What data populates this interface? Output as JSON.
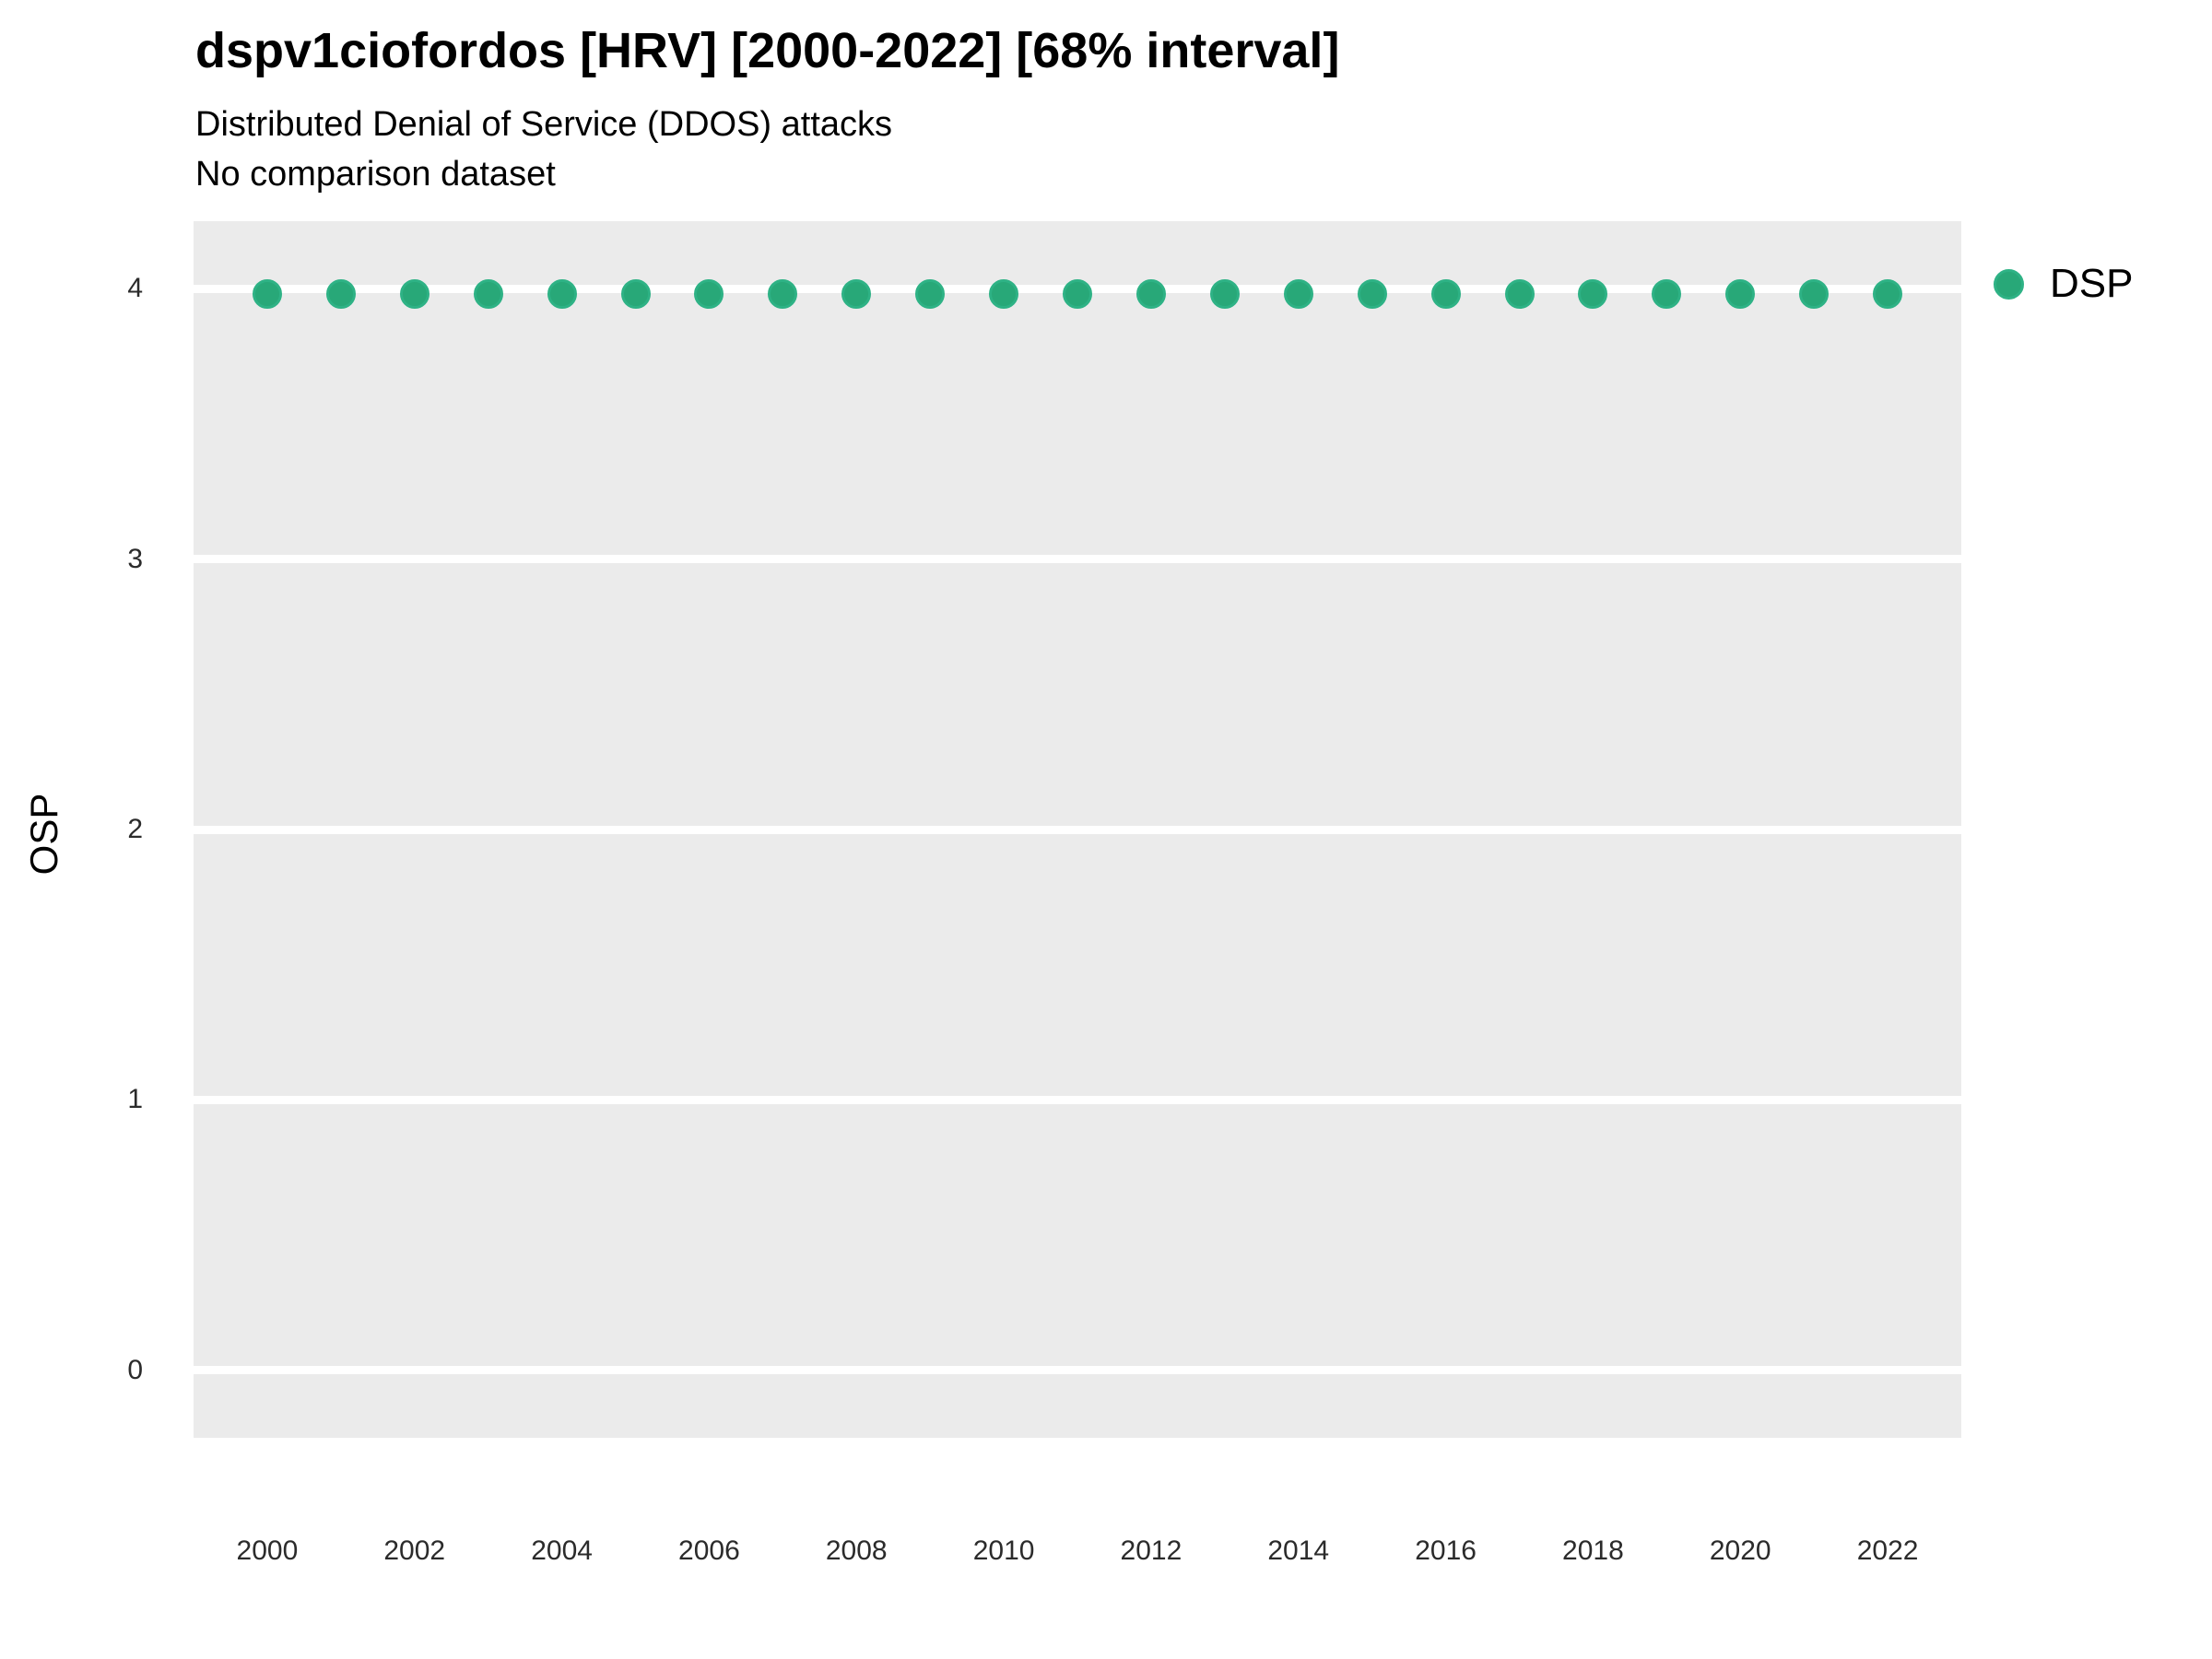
{
  "header": {
    "title": "dspv1ciofordos [HRV] [2000-2022] [68% interval]",
    "subtitle": "Distributed Denial of Service (DDOS) attacks",
    "comparison_note": "No comparison dataset"
  },
  "legend": {
    "position": "right",
    "entries": [
      {
        "label": "DSP",
        "color": "#28a878",
        "border_color": "#2eb285"
      }
    ]
  },
  "chart_data": {
    "type": "scatter",
    "title": "dspv1ciofordos [HRV] [2000-2022] [68% interval]",
    "subtitle": "Distributed Denial of Service (DDOS) attacks",
    "note": "No comparison dataset",
    "xlabel": "",
    "ylabel": "OSP",
    "x": [
      2000,
      2001,
      2002,
      2003,
      2004,
      2005,
      2006,
      2007,
      2008,
      2009,
      2010,
      2011,
      2012,
      2013,
      2014,
      2015,
      2016,
      2017,
      2018,
      2019,
      2020,
      2021,
      2022
    ],
    "series": [
      {
        "name": "DSP",
        "color": "#28a878",
        "border_color": "#2eb285",
        "values": [
          3.98,
          3.98,
          3.98,
          3.98,
          3.98,
          3.98,
          3.98,
          3.98,
          3.98,
          3.98,
          3.98,
          3.98,
          3.98,
          3.98,
          3.98,
          3.98,
          3.98,
          3.98,
          3.98,
          3.98,
          3.98,
          3.98,
          3.98
        ]
      }
    ],
    "x_ticks": [
      2000,
      2002,
      2004,
      2006,
      2008,
      2010,
      2012,
      2014,
      2016,
      2018,
      2020,
      2022
    ],
    "y_ticks": [
      0,
      1,
      2,
      3,
      4
    ],
    "xlim": [
      1999,
      2023
    ],
    "ylim": [
      -0.25,
      4.25
    ],
    "grid": "horizontal-major-only",
    "legend_position": "right",
    "panel_bg": "#ebebeb",
    "grid_color": "#ffffff"
  }
}
